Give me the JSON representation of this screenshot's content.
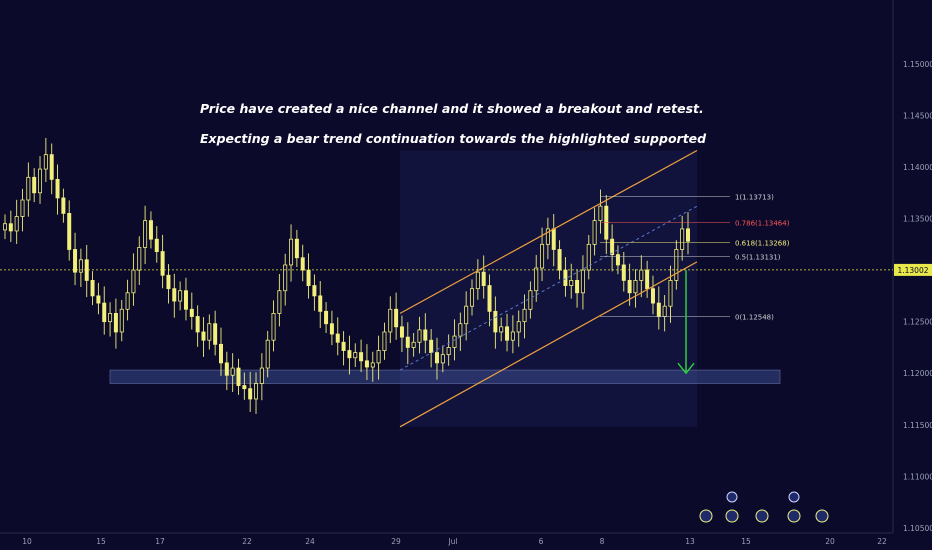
{
  "notes": [
    "Price have created a nice channel and it showed a breakout and retest.",
    "Expecting a bear trend continuation towards the highlighted supported"
  ],
  "colors": {
    "background": "#0b0a2b",
    "candle": "#f2ef7a",
    "channel": "#f0a13c",
    "support_zone": "#3a4a8c",
    "arrow": "#2ecc40",
    "price_line": "#e8e84a",
    "fib_red": "#ff5555"
  },
  "chart_data": {
    "type": "candlestick",
    "instrument_hint": "forex",
    "yaxis": {
      "position": "right",
      "ylim": [
        1.1045,
        1.1562
      ],
      "ticks": [
        "1.10500",
        "1.11000",
        "1.11500",
        "1.12000",
        "1.12500",
        "1.13000",
        "1.13500",
        "1.14000",
        "1.14500",
        "1.15000"
      ]
    },
    "xaxis": {
      "tick_labels": [
        "10",
        "15",
        "17",
        "22",
        "24",
        "29",
        "Jul",
        "6",
        "8",
        "13",
        "15",
        "20",
        "22"
      ]
    },
    "current_price": "1.13002",
    "fibonacci_levels": [
      {
        "label": "1(1.13713)",
        "value": 1.13713,
        "color": "#d0d0d0"
      },
      {
        "label": "0.786(1.13464)",
        "value": 1.13464,
        "color": "#ff5555"
      },
      {
        "label": "0.618(1.13268)",
        "value": 1.13268,
        "color": "#f2ef7a"
      },
      {
        "label": "0.5(1.13131)",
        "value": 1.13131,
        "color": "#d0d0d0"
      },
      {
        "label": "0(1.12548)",
        "value": 1.12548,
        "color": "#d0d0d0"
      }
    ],
    "channel": {
      "upper": {
        "from": [
          29,
          1.1258
        ],
        "to": [
          13,
          1.1416
        ]
      },
      "lower": {
        "from": [
          29,
          1.1148
        ],
        "to": [
          13,
          1.1308
        ]
      },
      "median_dashed": true
    },
    "support_zone": {
      "low": 1.119,
      "high": 1.1203
    },
    "projection_arrow": {
      "from": 1.13,
      "to": 1.12,
      "direction": "down"
    },
    "close_prices": [
      1.1345,
      1.1338,
      1.1352,
      1.1368,
      1.139,
      1.1375,
      1.1398,
      1.1412,
      1.1388,
      1.137,
      1.1355,
      1.132,
      1.1298,
      1.131,
      1.129,
      1.1275,
      1.1268,
      1.125,
      1.1258,
      1.124,
      1.1262,
      1.1278,
      1.13,
      1.1322,
      1.1348,
      1.133,
      1.1318,
      1.1295,
      1.1282,
      1.127,
      1.128,
      1.1262,
      1.1255,
      1.124,
      1.1232,
      1.1248,
      1.1228,
      1.121,
      1.1198,
      1.1205,
      1.1188,
      1.1185,
      1.1175,
      1.119,
      1.1205,
      1.1232,
      1.1258,
      1.128,
      1.1305,
      1.133,
      1.1312,
      1.13,
      1.1285,
      1.1275,
      1.126,
      1.1248,
      1.1238,
      1.123,
      1.1222,
      1.1215,
      1.122,
      1.1212,
      1.1206,
      1.121,
      1.1222,
      1.124,
      1.1262,
      1.1245,
      1.1235,
      1.1225,
      1.123,
      1.1242,
      1.1232,
      1.122,
      1.121,
      1.1218,
      1.1225,
      1.1236,
      1.1248,
      1.1265,
      1.1282,
      1.1298,
      1.1285,
      1.126,
      1.124,
      1.1245,
      1.1232,
      1.124,
      1.125,
      1.1262,
      1.128,
      1.1302,
      1.1325,
      1.134,
      1.132,
      1.13,
      1.1285,
      1.129,
      1.1278,
      1.13,
      1.1325,
      1.1348,
      1.1362,
      1.133,
      1.1315,
      1.1305,
      1.129,
      1.1278,
      1.129,
      1.13,
      1.1282,
      1.1268,
      1.1255,
      1.1265,
      1.129,
      1.132,
      1.134,
      1.1328
    ]
  }
}
